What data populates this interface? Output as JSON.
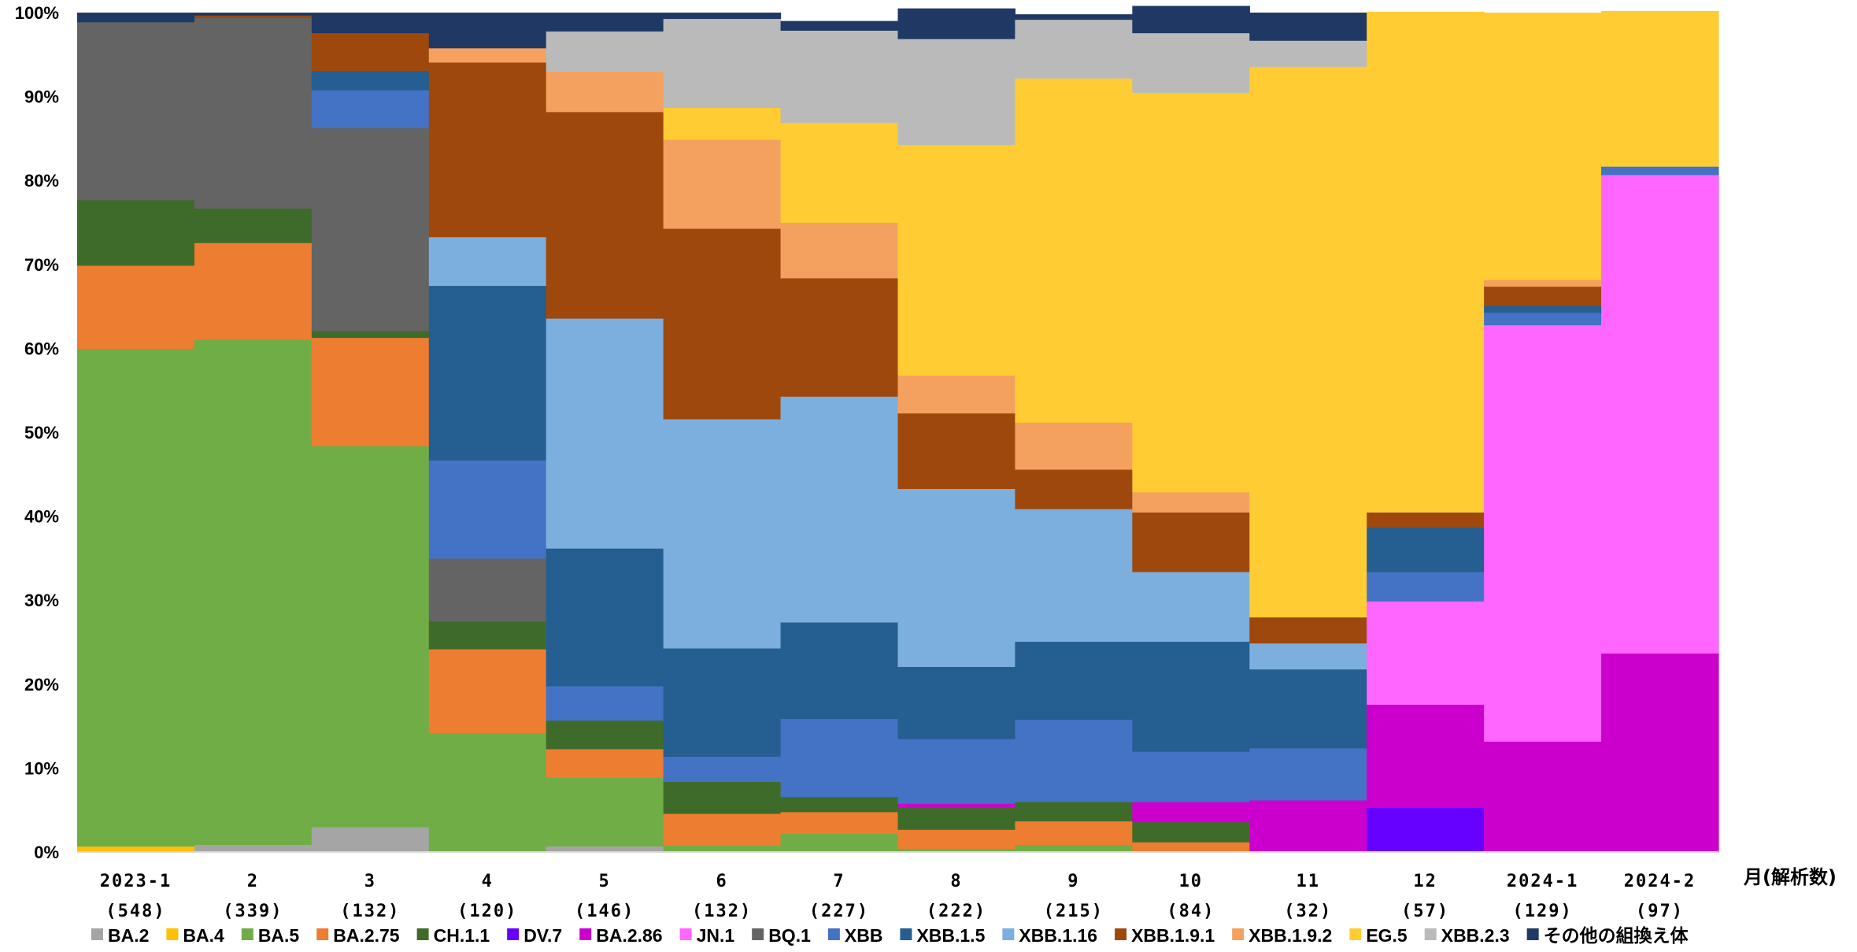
{
  "chart_data": {
    "type": "bar",
    "stacked": true,
    "title": "",
    "xlabel": "月(解析数)",
    "ylabel": "",
    "ylim": [
      0,
      100
    ],
    "yticks": [
      "0%",
      "10%",
      "20%",
      "30%",
      "40%",
      "50%",
      "60%",
      "70%",
      "80%",
      "90%",
      "100%"
    ],
    "grid": false,
    "legend_position": "bottom",
    "categories": [
      "2023-1",
      "2",
      "3",
      "4",
      "5",
      "6",
      "7",
      "8",
      "9",
      "10",
      "11",
      "12",
      "2024-1",
      "2024-2"
    ],
    "counts": [
      "(548)",
      "(339)",
      "(132)",
      "(120)",
      "(146)",
      "(132)",
      "(227)",
      "(222)",
      "(215)",
      "(84)",
      "(32)",
      "(57)",
      "(129)",
      "(97)"
    ],
    "series": [
      {
        "name": "BA.2",
        "color": "#a5a5a5",
        "values": [
          0,
          0.9,
          3.0,
          0,
          0.7,
          0,
          0,
          0,
          0,
          0,
          0,
          0,
          0,
          0
        ]
      },
      {
        "name": "BA.4",
        "color": "#ffc000",
        "values": [
          0.7,
          0,
          0,
          0,
          0,
          0,
          0,
          0,
          0,
          0,
          0,
          0,
          0,
          0
        ]
      },
      {
        "name": "BA.5",
        "color": "#70ad47",
        "values": [
          59.3,
          60.2,
          45.4,
          14.2,
          8.2,
          0.8,
          2.2,
          0.4,
          0.9,
          0,
          0,
          0,
          0,
          0
        ]
      },
      {
        "name": "BA.2.75",
        "color": "#ed7d31",
        "values": [
          9.9,
          11.5,
          12.9,
          10.0,
          3.4,
          3.8,
          2.6,
          2.3,
          2.8,
          1.2,
          0,
          0,
          0,
          0
        ]
      },
      {
        "name": "CH.1.1",
        "color": "#3f6b2a",
        "values": [
          7.8,
          4.1,
          0.8,
          3.3,
          3.4,
          3.8,
          1.8,
          2.7,
          2.3,
          2.4,
          0,
          0,
          0,
          0
        ]
      },
      {
        "name": "DV.7",
        "color": "#6600ff",
        "values": [
          0,
          0,
          0,
          0,
          0,
          0,
          0,
          0,
          0,
          0,
          0,
          5.3,
          0,
          0
        ]
      },
      {
        "name": "BA.2.86",
        "color": "#cc00cc",
        "values": [
          0,
          0,
          0,
          0,
          0,
          0,
          0,
          0.4,
          0,
          2.4,
          6.2,
          12.3,
          13.2,
          23.7
        ]
      },
      {
        "name": "JN.1",
        "color": "#ff66ff",
        "values": [
          0,
          0,
          0,
          0,
          0,
          0,
          0,
          0,
          0,
          0,
          0,
          12.3,
          49.6,
          57.0
        ]
      },
      {
        "name": "BQ.1",
        "color": "#646464",
        "values": [
          21.2,
          22.7,
          24.2,
          7.5,
          0,
          0,
          0,
          0,
          0,
          0,
          0,
          0,
          0,
          0
        ]
      },
      {
        "name": "XBB",
        "color": "#4472c4",
        "values": [
          0,
          0,
          4.5,
          11.7,
          4.1,
          3.0,
          9.3,
          7.7,
          9.8,
          6.0,
          6.2,
          3.5,
          1.5,
          1.0
        ]
      },
      {
        "name": "XBB.1.5",
        "color": "#255e91",
        "values": [
          0,
          0,
          2.3,
          20.8,
          16.4,
          12.9,
          11.5,
          8.6,
          9.3,
          13.1,
          9.4,
          5.3,
          0.8,
          0
        ]
      },
      {
        "name": "XBB.1.16",
        "color": "#7cafde",
        "values": [
          0,
          0,
          0,
          5.8,
          27.4,
          27.3,
          26.9,
          21.2,
          15.8,
          8.3,
          3.1,
          0,
          0,
          0
        ]
      },
      {
        "name": "XBB.1.9.1",
        "color": "#9e480e",
        "values": [
          0,
          0.3,
          4.5,
          20.8,
          24.6,
          22.7,
          14.1,
          9.0,
          4.7,
          7.1,
          3.1,
          1.8,
          2.3,
          0
        ]
      },
      {
        "name": "XBB.1.9.2",
        "color": "#f4a15f",
        "values": [
          0,
          0,
          0,
          1.7,
          4.8,
          10.6,
          6.6,
          4.5,
          5.6,
          2.4,
          0,
          0,
          0.8,
          0
        ]
      },
      {
        "name": "EG.5",
        "color": "#ffcc33",
        "values": [
          0,
          0,
          0,
          0,
          0,
          3.8,
          11.9,
          27.5,
          41.0,
          47.6,
          65.6,
          59.6,
          31.8,
          18.5
        ]
      },
      {
        "name": "XBB.2.3",
        "color": "#bababa",
        "values": [
          0,
          0,
          0,
          0,
          4.8,
          10.6,
          11.0,
          12.6,
          7.0,
          7.1,
          3.1,
          0,
          0,
          0
        ]
      },
      {
        "name": "その他の組換え体",
        "color": "#203864",
        "values": [
          1.1,
          0.3,
          2.4,
          4.2,
          2.2,
          0.7,
          1.1,
          3.6,
          0.6,
          3.2,
          3.3,
          0,
          0,
          0
        ]
      }
    ]
  }
}
